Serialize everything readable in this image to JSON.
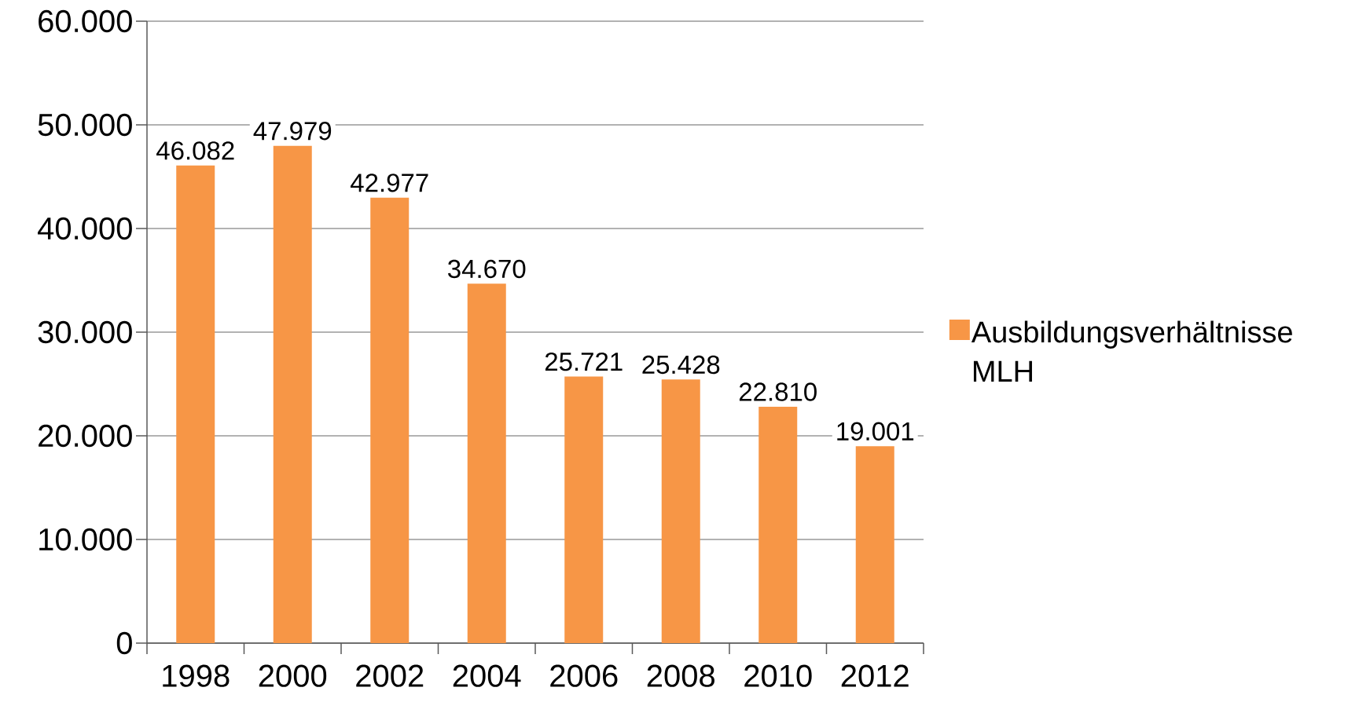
{
  "chart_data": {
    "type": "bar",
    "categories": [
      "1998",
      "2000",
      "2002",
      "2004",
      "2006",
      "2008",
      "2010",
      "2012"
    ],
    "series": [
      {
        "name": "Ausbildungsverhältnisse MLH",
        "color": "#f79646",
        "values": [
          46082,
          47979,
          42977,
          34670,
          25721,
          25428,
          22810,
          19001
        ],
        "value_labels": [
          "46.082",
          "47.979",
          "42.977",
          "34.670",
          "25.721",
          "25.428",
          "22.810",
          "19.001"
        ]
      }
    ],
    "ylim": [
      0,
      60000
    ],
    "yticks": [
      {
        "value": 0,
        "label": "0"
      },
      {
        "value": 10000,
        "label": "10.000"
      },
      {
        "value": 20000,
        "label": "20.000"
      },
      {
        "value": 30000,
        "label": "30.000"
      },
      {
        "value": 40000,
        "label": "40.000"
      },
      {
        "value": 50000,
        "label": "50.000"
      },
      {
        "value": 60000,
        "label": "60.000"
      }
    ],
    "grid": "y",
    "legend": "right"
  }
}
